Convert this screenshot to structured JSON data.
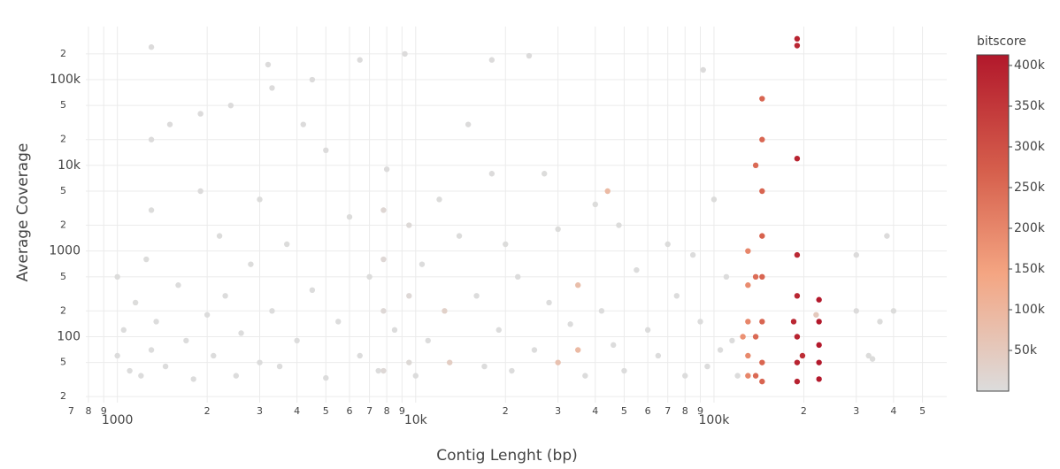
{
  "chart_data": {
    "type": "scatter",
    "x_label": "Contig Lenght (bp)",
    "y_label": "Average Coverage",
    "x_log": true,
    "y_log": true,
    "grid": true,
    "xlim": [
      630,
      603000
    ],
    "ylim": [
      17,
      417000
    ],
    "xticks": [
      {
        "value": 700,
        "label": "7"
      },
      {
        "value": 800,
        "label": "8"
      },
      {
        "value": 900,
        "label": "9"
      },
      1000,
      {
        "value": 2000,
        "label": "2"
      },
      {
        "value": 3000,
        "label": "3"
      },
      {
        "value": 4000,
        "label": "4"
      },
      {
        "value": 5000,
        "label": "5"
      },
      {
        "value": 6000,
        "label": "6"
      },
      {
        "value": 7000,
        "label": "7"
      },
      {
        "value": 8000,
        "label": "8"
      },
      {
        "value": 9000,
        "label": "9"
      },
      {
        "value": 10000,
        "label": "10k"
      },
      {
        "value": 20000,
        "label": "2"
      },
      {
        "value": 30000,
        "label": "3"
      },
      {
        "value": 40000,
        "label": "4"
      },
      {
        "value": 50000,
        "label": "5"
      },
      {
        "value": 60000,
        "label": "6"
      },
      {
        "value": 70000,
        "label": "7"
      },
      {
        "value": 80000,
        "label": "8"
      },
      {
        "value": 90000,
        "label": "9"
      },
      {
        "value": 100000,
        "label": "100k"
      },
      {
        "value": 200000,
        "label": "2"
      },
      {
        "value": 300000,
        "label": "3"
      },
      {
        "value": 400000,
        "label": "4"
      },
      {
        "value": 500000,
        "label": "5"
      }
    ],
    "yticks": [
      {
        "value": 20,
        "label": "2"
      },
      {
        "value": 50,
        "label": "5"
      },
      100,
      {
        "value": 200,
        "label": "2"
      },
      {
        "value": 500,
        "label": "5"
      },
      1000,
      {
        "value": 2000,
        "label": "2"
      },
      {
        "value": 5000,
        "label": "5"
      },
      {
        "value": 10000,
        "label": "10k"
      },
      {
        "value": 20000,
        "label": "2"
      },
      {
        "value": 50000,
        "label": "5"
      },
      {
        "value": 100000,
        "label": "100k"
      },
      {
        "value": 200000,
        "label": "2"
      }
    ],
    "colorbar_title": "bitscore",
    "clim": [
      0,
      413000
    ],
    "colorscale": [
      [
        0,
        "#dcdcdc"
      ],
      [
        0.35,
        "#f4a582"
      ],
      [
        0.65,
        "#d6604d"
      ],
      [
        1,
        "#b2182b"
      ]
    ],
    "colorbar_ticks": [
      {
        "value": 50000,
        "label": "50k"
      },
      {
        "value": 100000,
        "label": "100k"
      },
      {
        "value": 150000,
        "label": "150k"
      },
      {
        "value": 200000,
        "label": "200k"
      },
      {
        "value": 250000,
        "label": "250k"
      },
      {
        "value": 300000,
        "label": "300k"
      },
      {
        "value": 350000,
        "label": "350k"
      },
      {
        "value": 400000,
        "label": "400k"
      }
    ],
    "x": [
      1000,
      1000,
      1050,
      1100,
      1150,
      1200,
      1250,
      1300,
      1300,
      1300,
      1300,
      1350,
      1450,
      1500,
      1600,
      1700,
      1800,
      1900,
      1900,
      2000,
      2100,
      2200,
      2300,
      2400,
      2500,
      2600,
      2800,
      3000,
      3000,
      3200,
      3300,
      3300,
      3500,
      3700,
      4000,
      4200,
      4500,
      4500,
      5000,
      5000,
      5500,
      6000,
      6500,
      6500,
      7000,
      7500,
      7800,
      7800,
      7800,
      7800,
      8000,
      8500,
      9200,
      9500,
      9500,
      9500,
      10000,
      10500,
      11000,
      12000,
      12500,
      13000,
      14000,
      15000,
      16000,
      17000,
      18000,
      18000,
      19000,
      20000,
      21000,
      22000,
      24000,
      25000,
      27000,
      28000,
      30000,
      30000,
      33000,
      35000,
      35000,
      37000,
      40000,
      42000,
      44000,
      46000,
      48000,
      50000,
      55000,
      60000,
      65000,
      70000,
      75000,
      80000,
      85000,
      90000,
      92000,
      95000,
      100000,
      105000,
      110000,
      115000,
      120000,
      300000,
      300000,
      330000,
      380000,
      400000,
      360000,
      340000,
      220000,
      130000,
      130000,
      130000,
      130000,
      130000,
      125000,
      145000,
      145000,
      145000,
      145000,
      145000,
      145000,
      145000,
      145000,
      138000,
      138000,
      138000,
      138000,
      190000,
      190000,
      190000,
      190000,
      190000,
      190000,
      190000,
      190000,
      185000,
      198000,
      225000,
      225000,
      225000,
      225000,
      225000
    ],
    "y": [
      500,
      60,
      120,
      40,
      250,
      35,
      800,
      70,
      240000,
      20000,
      3000,
      150,
      45,
      30000,
      400,
      90,
      32,
      5000,
      40000,
      180,
      60,
      1500,
      300,
      50000,
      35,
      110,
      700,
      4000,
      50,
      150000,
      80000,
      200,
      45,
      1200,
      90,
      30000,
      100000,
      350,
      33,
      15000,
      150,
      2500,
      60,
      170000,
      500,
      40,
      3000,
      800,
      200,
      40,
      9000,
      120,
      200000,
      300,
      50,
      2000,
      35,
      700,
      90,
      4000,
      200,
      50,
      1500,
      30000,
      300,
      45,
      170000,
      8000,
      120,
      1200,
      40,
      500,
      190000,
      70,
      8000,
      250,
      50,
      1800,
      140,
      400,
      70,
      35,
      3500,
      200,
      5000,
      80,
      2000,
      40,
      600,
      120,
      60,
      1200,
      300,
      35,
      900,
      150,
      130000,
      45,
      4000,
      70,
      500,
      90,
      35,
      900,
      200,
      60,
      1500,
      200,
      150,
      55,
      180,
      1000,
      400,
      150,
      60,
      35,
      100,
      60000,
      20000,
      5000,
      1500,
      500,
      150,
      50,
      30,
      10000,
      500,
      100,
      35,
      300000,
      250000,
      12000,
      900,
      300,
      100,
      50,
      30,
      150,
      60,
      270,
      150,
      80,
      50,
      32
    ],
    "bitscore": [
      1000,
      500,
      800,
      300,
      900,
      200,
      1000,
      400,
      2000,
      1500,
      1200,
      600,
      300,
      2000,
      800,
      500,
      200,
      1500,
      1800,
      700,
      300,
      1000,
      800,
      2000,
      200,
      500,
      900,
      1200,
      300,
      2000,
      1800,
      600,
      200,
      1000,
      400,
      1500,
      2000,
      700,
      200,
      1500,
      500,
      1200,
      300,
      2000,
      900,
      300,
      15000,
      12000,
      10000,
      10000,
      2000,
      500,
      2000,
      10000,
      9000,
      8000,
      300,
      800,
      400,
      1200,
      30000,
      40000,
      1000,
      1500,
      600,
      300,
      2000,
      1500,
      500,
      900,
      300,
      700,
      2000,
      400,
      1200,
      600,
      70000,
      1000,
      500,
      80000,
      90000,
      300,
      1000,
      600,
      90000,
      300,
      1000,
      300,
      700,
      500,
      400,
      900,
      600,
      300,
      700,
      500,
      2000,
      300,
      1000,
      400,
      600,
      400,
      300,
      2000,
      1500,
      1000,
      1500,
      1000,
      1000,
      1000,
      50000,
      200000,
      190000,
      200000,
      195000,
      200000,
      180000,
      260000,
      255000,
      260000,
      265000,
      260000,
      260000,
      258000,
      262000,
      250000,
      245000,
      250000,
      250000,
      390000,
      385000,
      390000,
      380000,
      385000,
      390000,
      388000,
      392000,
      380000,
      370000,
      410000,
      412000,
      410000,
      408000,
      410000
    ]
  }
}
